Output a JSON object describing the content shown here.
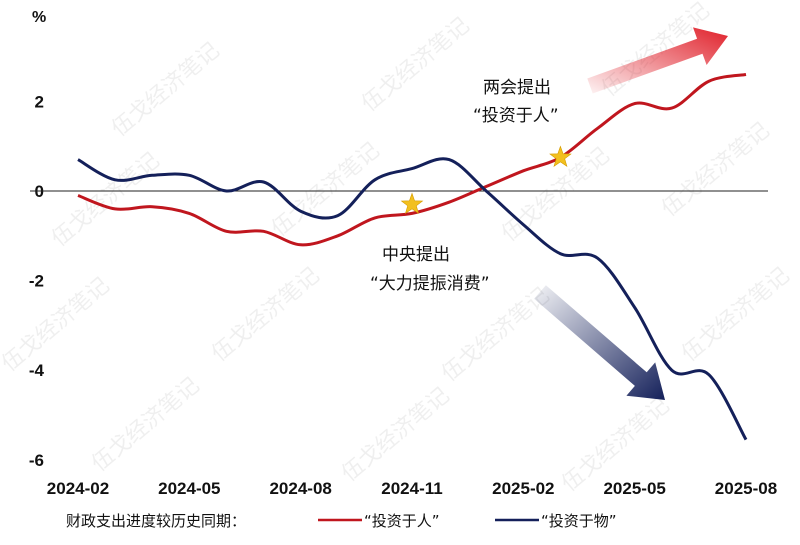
{
  "watermark": "伍戈经济笔记",
  "colors": {
    "invest_in_people": "#c0161e",
    "invest_in_things": "#14205a",
    "zero_line": "#222222",
    "star": "#f2c01e"
  },
  "chart_data": {
    "type": "line",
    "ylabel": "%",
    "ylim": [
      -6.3,
      4.2
    ],
    "yticks": [
      2,
      0,
      -2,
      -4,
      -6
    ],
    "x_tick_labels": [
      "2024-02",
      "2024-05",
      "2024-08",
      "2024-11",
      "2025-02",
      "2025-05",
      "2025-08"
    ],
    "legend_title": "财政支出进度较历史同期：",
    "series": [
      {
        "name": "“投资于人”",
        "color": "#c0161e",
        "points": [
          [
            "2024-02",
            -0.1
          ],
          [
            "2024-03",
            -0.4
          ],
          [
            "2024-04",
            -0.35
          ],
          [
            "2024-05",
            -0.5
          ],
          [
            "2024-06",
            -0.9
          ],
          [
            "2024-07",
            -0.9
          ],
          [
            "2024-08",
            -1.2
          ],
          [
            "2024-09",
            -1.0
          ],
          [
            "2024-10",
            -0.6
          ],
          [
            "2024-11",
            -0.5
          ],
          [
            "2024-12",
            -0.25
          ],
          [
            "2025-01",
            0.1
          ],
          [
            "2025-02",
            0.45
          ],
          [
            "2025-03",
            0.75
          ],
          [
            "2025-04",
            1.4
          ],
          [
            "2025-05",
            1.95
          ],
          [
            "2025-06",
            1.85
          ],
          [
            "2025-07",
            2.45
          ],
          [
            "2025-08",
            2.6
          ]
        ]
      },
      {
        "name": "“投资于物”",
        "color": "#14205a",
        "points": [
          [
            "2024-02",
            0.7
          ],
          [
            "2024-03",
            0.25
          ],
          [
            "2024-04",
            0.35
          ],
          [
            "2024-05",
            0.35
          ],
          [
            "2024-06",
            0.0
          ],
          [
            "2024-07",
            0.2
          ],
          [
            "2024-08",
            -0.45
          ],
          [
            "2024-09",
            -0.55
          ],
          [
            "2024-10",
            0.25
          ],
          [
            "2024-11",
            0.5
          ],
          [
            "2024-12",
            0.7
          ],
          [
            "2025-01",
            0.0
          ],
          [
            "2025-02",
            -0.75
          ],
          [
            "2025-03",
            -1.4
          ],
          [
            "2025-04",
            -1.5
          ],
          [
            "2025-05",
            -2.6
          ],
          [
            "2025-06",
            -4.0
          ],
          [
            "2025-07",
            -4.1
          ],
          [
            "2025-08",
            -5.55
          ]
        ]
      }
    ],
    "annotations": [
      {
        "text_lines": [
          "两会提出",
          "“投资于人”"
        ],
        "marker_date": "2025-03",
        "marker_value": 0.75,
        "trend": "up"
      },
      {
        "text_lines": [
          "中央提出",
          "“大力提振消费”"
        ],
        "marker_date": "2024-11",
        "marker_value": -0.3,
        "trend": "down"
      }
    ]
  }
}
